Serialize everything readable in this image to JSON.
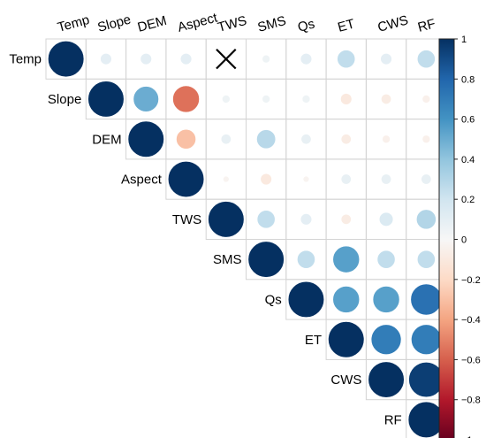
{
  "chart_data": {
    "type": "heatmap",
    "variables": [
      "Temp",
      "Slope",
      "DEM",
      "Aspect",
      "TWS",
      "SMS",
      "Qs",
      "ET",
      "CWS",
      "RF"
    ],
    "matrix": [
      [
        1.0,
        0.1,
        0.1,
        0.1,
        null,
        0.05,
        0.1,
        0.25,
        0.1,
        0.25
      ],
      [
        null,
        1.0,
        0.5,
        -0.55,
        0.05,
        0.05,
        0.05,
        -0.1,
        -0.08,
        -0.05
      ],
      [
        null,
        null,
        1.0,
        -0.3,
        0.08,
        0.28,
        0.08,
        -0.08,
        -0.05,
        -0.05
      ],
      [
        null,
        null,
        null,
        1.0,
        -0.03,
        -0.1,
        -0.03,
        0.08,
        0.08,
        0.08
      ],
      [
        null,
        null,
        null,
        null,
        1.0,
        0.25,
        0.1,
        -0.08,
        0.15,
        0.3
      ],
      [
        null,
        null,
        null,
        null,
        null,
        1.0,
        0.25,
        0.55,
        0.25,
        0.25
      ],
      [
        null,
        null,
        null,
        null,
        null,
        null,
        1.0,
        0.55,
        0.55,
        0.75
      ],
      [
        null,
        null,
        null,
        null,
        null,
        null,
        null,
        1.0,
        0.7,
        0.7
      ],
      [
        null,
        null,
        null,
        null,
        null,
        null,
        null,
        null,
        1.0,
        0.95
      ],
      [
        null,
        null,
        null,
        null,
        null,
        null,
        null,
        null,
        null,
        1.0
      ]
    ],
    "insignificant": [
      [
        0,
        4
      ]
    ],
    "insignificant_marker": "×",
    "colorbar": {
      "ticks": [
        "1",
        "0.8",
        "0.6",
        "0.4",
        "0.2",
        "0",
        "−0.2",
        "−0.4",
        "−0.6",
        "−0.8",
        "−1"
      ],
      "range": [
        -1,
        1
      ],
      "colors": [
        "#67001f",
        "#b2182b",
        "#d6604d",
        "#f4a582",
        "#fddbc7",
        "#f7f7f7",
        "#d1e5f0",
        "#92c5de",
        "#4393c3",
        "#2166ac",
        "#053061"
      ]
    },
    "title": "",
    "xlabel": "",
    "ylabel": ""
  }
}
